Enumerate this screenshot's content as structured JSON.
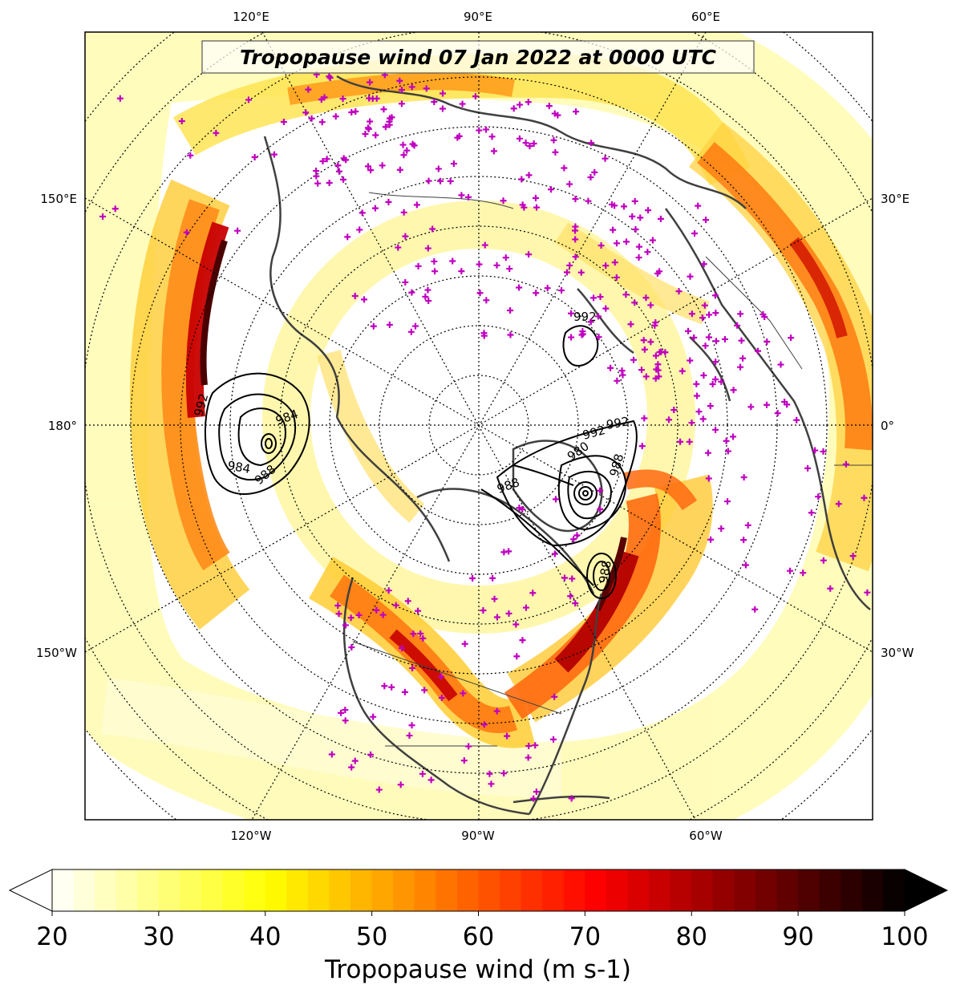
{
  "title": "Tropopause wind 07 Jan 2022 at 0000 UTC",
  "lon_labels": {
    "top": [
      "120°E",
      "90°E",
      "60°E"
    ],
    "left": [
      "150°E",
      "180°",
      "150°W"
    ],
    "right": [
      "30°E",
      "0°",
      "30°W"
    ],
    "bottom": [
      "120°W",
      "90°W",
      "60°W"
    ]
  },
  "contour_labels": [
    "992",
    "984",
    "988",
    "984",
    "992",
    "992",
    "992",
    "988",
    "980",
    "988",
    "988"
  ],
  "colorbar": {
    "min": 20,
    "max": 100,
    "step": 2,
    "ticks": [
      "20",
      "30",
      "40",
      "50",
      "60",
      "70",
      "80",
      "90",
      "100"
    ],
    "label": "Tropopause wind (m s-1)",
    "extend": "both",
    "colormap": "hot_r"
  },
  "colors": {
    "station_marker": "#c000c0",
    "coastline": "#404040",
    "contour": "#000000",
    "frame": "#000000"
  }
}
